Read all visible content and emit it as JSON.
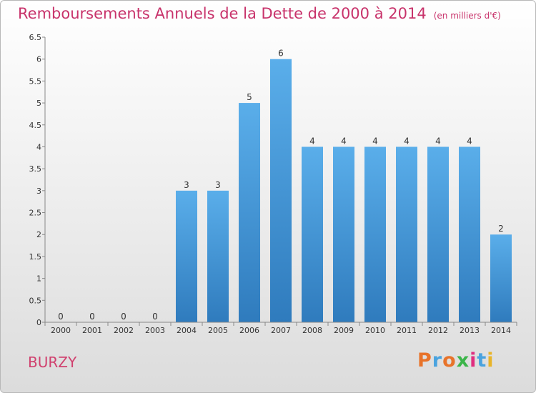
{
  "header": {
    "title": "Remboursements Annuels de la Dette de 2000 à 2014",
    "subtitle": "(en milliers d'€)"
  },
  "footer": {
    "commune": "BURZY",
    "logo": "Proxiti"
  },
  "colors": {
    "title": "#c8336b",
    "bar_top": "#5aaeea",
    "bar_bottom": "#2f7bbd",
    "logo_letters": [
      "#e8732a",
      "#4aa3df",
      "#e8732a",
      "#3cb54a",
      "#e02d7f",
      "#4aa3df",
      "#e8b42a"
    ]
  },
  "chart_data": {
    "type": "bar",
    "title": "Remboursements Annuels de la Dette de 2000 à 2014",
    "subtitle": "(en milliers d'€)",
    "categories": [
      "2000",
      "2001",
      "2002",
      "2003",
      "2004",
      "2005",
      "2006",
      "2007",
      "2008",
      "2009",
      "2010",
      "2011",
      "2012",
      "2013",
      "2014"
    ],
    "values": [
      0,
      0,
      0,
      0,
      3,
      3,
      5,
      6,
      4,
      4,
      4,
      4,
      4,
      4,
      2
    ],
    "yticks": [
      "0",
      "0.5",
      "1",
      "1.5",
      "2",
      "2.5",
      "3",
      "3.5",
      "4",
      "4.5",
      "5",
      "5.5",
      "6",
      "6.5"
    ],
    "ylim": [
      0,
      6.5
    ],
    "grid": false,
    "legend": "none"
  }
}
